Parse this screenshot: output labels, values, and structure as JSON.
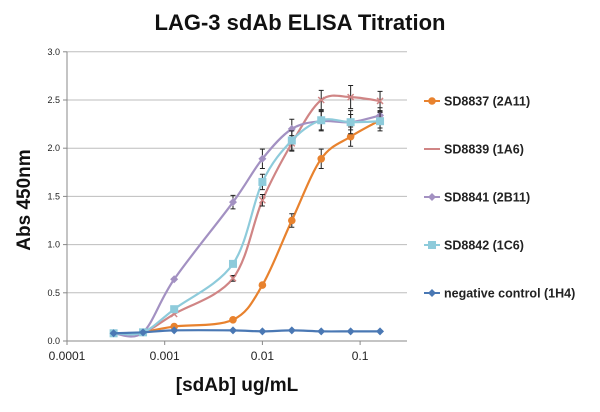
{
  "chart_data": {
    "type": "line",
    "title": "LAG-3 sdAb ELISA Titration",
    "xlabel": "[sdAb] ug/mL",
    "ylabel": "Abs  450nm",
    "x_scale": "log",
    "xlim": [
      0.0001,
      0.2
    ],
    "ylim": [
      0,
      3.0
    ],
    "x_ticks": [
      "0.0001",
      "0.001",
      "0.01",
      "0.1"
    ],
    "y_ticks": [
      "0.0",
      "0.5",
      "1.0",
      "1.5",
      "2.0",
      "2.5",
      "3.0"
    ],
    "grid": "horizontal",
    "legend": "right",
    "series": [
      {
        "name": "SD8837 (2A11)",
        "color": "#E8822E",
        "marker": "circle",
        "x": [
          0.0006,
          0.00125,
          0.005,
          0.01,
          0.02,
          0.04,
          0.08,
          0.16
        ],
        "y": [
          0.09,
          0.15,
          0.22,
          0.58,
          1.25,
          1.89,
          2.12,
          2.29
        ],
        "err": [
          0,
          0,
          0,
          0,
          0.07,
          0.1,
          0.1,
          0.08
        ]
      },
      {
        "name": "SD8839 (1A6)",
        "color": "#D08585",
        "marker": "x",
        "x": [
          0.0003,
          0.0006,
          0.00125,
          0.005,
          0.01,
          0.02,
          0.04,
          0.08,
          0.16
        ],
        "y": [
          0.08,
          0.09,
          0.28,
          0.65,
          1.46,
          2.05,
          2.5,
          2.53,
          2.49
        ],
        "err": [
          0,
          0,
          0,
          0.03,
          0.06,
          0.08,
          0.1,
          0.12,
          0.1
        ]
      },
      {
        "name": "SD8841 (2B11)",
        "color": "#A391C2",
        "marker": "diamond",
        "x": [
          0.0003,
          0.0006,
          0.00125,
          0.005,
          0.01,
          0.02,
          0.04,
          0.08,
          0.16
        ],
        "y": [
          0.08,
          0.09,
          0.64,
          1.44,
          1.89,
          2.2,
          2.28,
          2.27,
          2.34
        ],
        "err": [
          0,
          0,
          0,
          0.07,
          0.1,
          0.1,
          0.1,
          0.12,
          0.08
        ]
      },
      {
        "name": "SD8842 (1C6)",
        "color": "#8ECBDB",
        "marker": "square",
        "x": [
          0.0003,
          0.0006,
          0.00125,
          0.005,
          0.01,
          0.02,
          0.04,
          0.08,
          0.16
        ],
        "y": [
          0.08,
          0.09,
          0.33,
          0.8,
          1.65,
          2.08,
          2.29,
          2.27,
          2.28
        ],
        "err": [
          0,
          0,
          0,
          0,
          0.08,
          0.1,
          0.1,
          0.08,
          0.1
        ]
      },
      {
        "name": "negative control (1H4)",
        "color": "#4A78B4",
        "marker": "diamond",
        "x": [
          0.0003,
          0.0006,
          0.00125,
          0.005,
          0.01,
          0.02,
          0.04,
          0.08,
          0.16
        ],
        "y": [
          0.08,
          0.09,
          0.11,
          0.11,
          0.1,
          0.11,
          0.1,
          0.1,
          0.1
        ],
        "err": [
          0,
          0,
          0,
          0,
          0,
          0,
          0,
          0,
          0
        ]
      }
    ]
  }
}
